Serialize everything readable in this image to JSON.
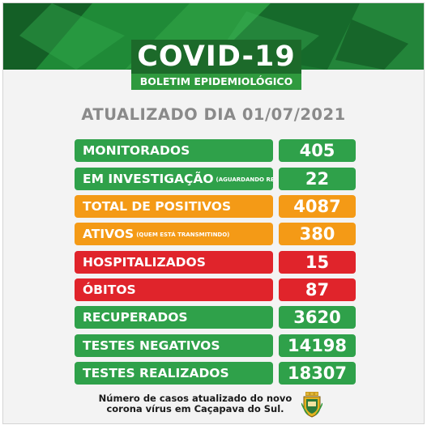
{
  "header": {
    "title": "COVID-19",
    "subtitle": "BOLETIM EPIDEMIOLÓGICO"
  },
  "updated_label": "ATUALIZADO DIA 01/07/2021",
  "rows": [
    {
      "label": "MONITORADOS",
      "note": "",
      "value": "405",
      "color": "#2fa14a"
    },
    {
      "label": "EM INVESTIGAÇÃO",
      "note": "(AGUARDANDO RESULTADO)",
      "value": "22",
      "color": "#2fa14a"
    },
    {
      "label": "TOTAL DE POSITIVOS",
      "note": "",
      "value": "4087",
      "color": "#f49a16"
    },
    {
      "label": "ATIVOS",
      "note": "(QUEM ESTÁ TRANSMITINDO)",
      "value": "380",
      "color": "#f49a16"
    },
    {
      "label": "HOSPITALIZADOS",
      "note": "",
      "value": "15",
      "color": "#e0242b"
    },
    {
      "label": "ÓBITOS",
      "note": "",
      "value": "87",
      "color": "#e0242b"
    },
    {
      "label": "RECUPERADOS",
      "note": "",
      "value": "3620",
      "color": "#2fa14a"
    },
    {
      "label": "TESTES NEGATIVOS",
      "note": "",
      "value": "14198",
      "color": "#2fa14a"
    },
    {
      "label": "TESTES REALIZADOS",
      "note": "",
      "value": "18307",
      "color": "#2fa14a"
    }
  ],
  "footer": {
    "line1": "Número de casos atualizado do novo",
    "line2": "corona vírus em Caçapava do Sul."
  },
  "icons": {
    "crest": "municipal-coat-of-arms-icon"
  }
}
